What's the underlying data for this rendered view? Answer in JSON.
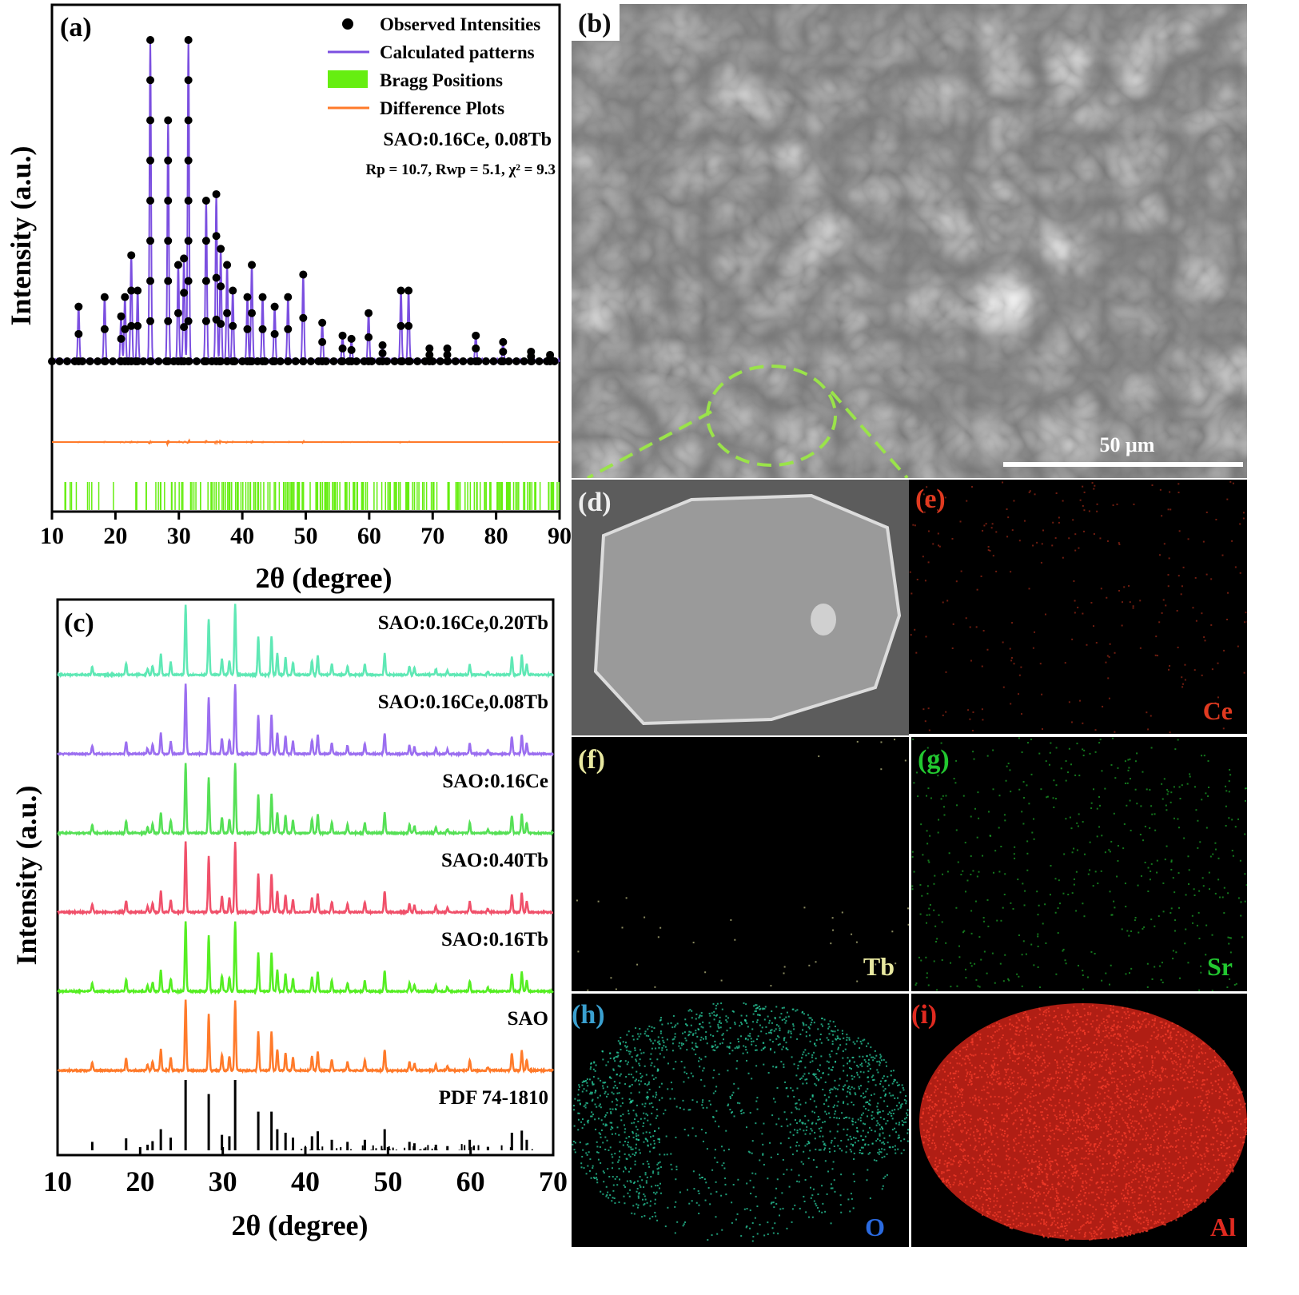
{
  "chart_data": [
    {
      "panel": "(a)",
      "type": "line",
      "xlabel": "2θ (degree)",
      "ylabel": "Intensity (a.u.)",
      "xlim": [
        10,
        90
      ],
      "xticks": [
        "10",
        "20",
        "30",
        "40",
        "50",
        "60",
        "70",
        "80",
        "90"
      ],
      "legend": {
        "placement": "top-right",
        "entries": [
          {
            "label": "Observed Intensities",
            "marker": "dot",
            "color": "#000000"
          },
          {
            "label": "Calculated patterns",
            "marker": "line",
            "color": "#7b4fe0"
          },
          {
            "label": "Bragg Positions",
            "marker": "box",
            "color": "#66ee11"
          },
          {
            "label": "Difference Plots",
            "marker": "line",
            "color": "#ff7a2a"
          }
        ]
      },
      "sample": "SAO:0.16Ce, 0.08Tb",
      "fit": "Rp = 10.7, Rwp = 5.1,  χ² = 9.3",
      "peaks": [
        [
          14.2,
          0.17
        ],
        [
          18.3,
          0.2
        ],
        [
          20.9,
          0.14
        ],
        [
          21.5,
          0.2
        ],
        [
          22.5,
          0.33
        ],
        [
          23.5,
          0.22
        ],
        [
          25.5,
          1.0
        ],
        [
          28.3,
          0.75
        ],
        [
          29.9,
          0.3
        ],
        [
          30.8,
          0.32
        ],
        [
          31.5,
          1.0
        ],
        [
          34.3,
          0.5
        ],
        [
          35.9,
          0.52
        ],
        [
          36.6,
          0.35
        ],
        [
          37.6,
          0.3
        ],
        [
          38.5,
          0.22
        ],
        [
          40.8,
          0.2
        ],
        [
          41.5,
          0.3
        ],
        [
          43.2,
          0.2
        ],
        [
          45.1,
          0.17
        ],
        [
          47.2,
          0.2
        ],
        [
          49.6,
          0.27
        ],
        [
          52.6,
          0.12
        ],
        [
          55.8,
          0.08
        ],
        [
          57.2,
          0.07
        ],
        [
          59.9,
          0.15
        ],
        [
          62.1,
          0.05
        ],
        [
          65.0,
          0.22
        ],
        [
          66.2,
          0.22
        ],
        [
          69.5,
          0.04
        ],
        [
          72.3,
          0.04
        ],
        [
          76.8,
          0.08
        ],
        [
          81.1,
          0.06
        ],
        [
          85.5,
          0.03
        ],
        [
          88.5,
          0.02
        ]
      ]
    },
    {
      "panel": "(c)",
      "type": "line",
      "xlabel": "2θ (degree)",
      "ylabel": "Intensity (a.u.)",
      "xlim": [
        10,
        70
      ],
      "xticks": [
        "10",
        "20",
        "30",
        "40",
        "50",
        "60",
        "70"
      ],
      "series": [
        {
          "name": "SAO:0.16Ce,0.20Tb",
          "color": "#5fe8b5"
        },
        {
          "name": "SAO:0.16Ce,0.08Tb",
          "color": "#9b6ef0"
        },
        {
          "name": "SAO:0.16Ce",
          "color": "#55e055"
        },
        {
          "name": "SAO:0.40Tb",
          "color": "#f0506a"
        },
        {
          "name": "SAO:0.16Tb",
          "color": "#55ee22"
        },
        {
          "name": "SAO",
          "color": "#ff7a2a"
        },
        {
          "name": "PDF 74-1810",
          "color": "#000000",
          "style": "sticks"
        }
      ],
      "peaks": [
        [
          14.2,
          0.12
        ],
        [
          18.3,
          0.17
        ],
        [
          20.9,
          0.08
        ],
        [
          21.5,
          0.13
        ],
        [
          22.5,
          0.3
        ],
        [
          23.7,
          0.18
        ],
        [
          25.5,
          1.0
        ],
        [
          28.3,
          0.8
        ],
        [
          29.9,
          0.22
        ],
        [
          30.8,
          0.2
        ],
        [
          31.5,
          1.0
        ],
        [
          34.3,
          0.55
        ],
        [
          35.9,
          0.55
        ],
        [
          36.6,
          0.3
        ],
        [
          37.6,
          0.25
        ],
        [
          38.5,
          0.18
        ],
        [
          40.8,
          0.2
        ],
        [
          41.5,
          0.27
        ],
        [
          43.2,
          0.15
        ],
        [
          45.1,
          0.12
        ],
        [
          47.2,
          0.15
        ],
        [
          49.6,
          0.3
        ],
        [
          52.6,
          0.12
        ],
        [
          53.2,
          0.1
        ],
        [
          55.8,
          0.08
        ],
        [
          57.2,
          0.06
        ],
        [
          59.9,
          0.15
        ],
        [
          62.1,
          0.05
        ],
        [
          65.0,
          0.25
        ],
        [
          66.2,
          0.28
        ],
        [
          66.8,
          0.15
        ]
      ]
    }
  ],
  "panels": {
    "a": "(a)",
    "b": "(b)",
    "c": "(c)",
    "d": "(d)",
    "e": "(e)",
    "f": "(f)",
    "g": "(g)",
    "h": "(h)",
    "i": "(i)"
  },
  "sem": {
    "scale_bar": "50 μm"
  },
  "maps": [
    {
      "panel": "e",
      "element": "Ce",
      "color": "#e03a20"
    },
    {
      "panel": "f",
      "element": "Tb",
      "color": "#e8e8a0"
    },
    {
      "panel": "g",
      "element": "Sr",
      "color": "#22c830"
    },
    {
      "panel": "h",
      "element": "O",
      "color": "#2a6ae0"
    },
    {
      "panel": "i",
      "element": "Al",
      "color": "#d8281c"
    }
  ]
}
